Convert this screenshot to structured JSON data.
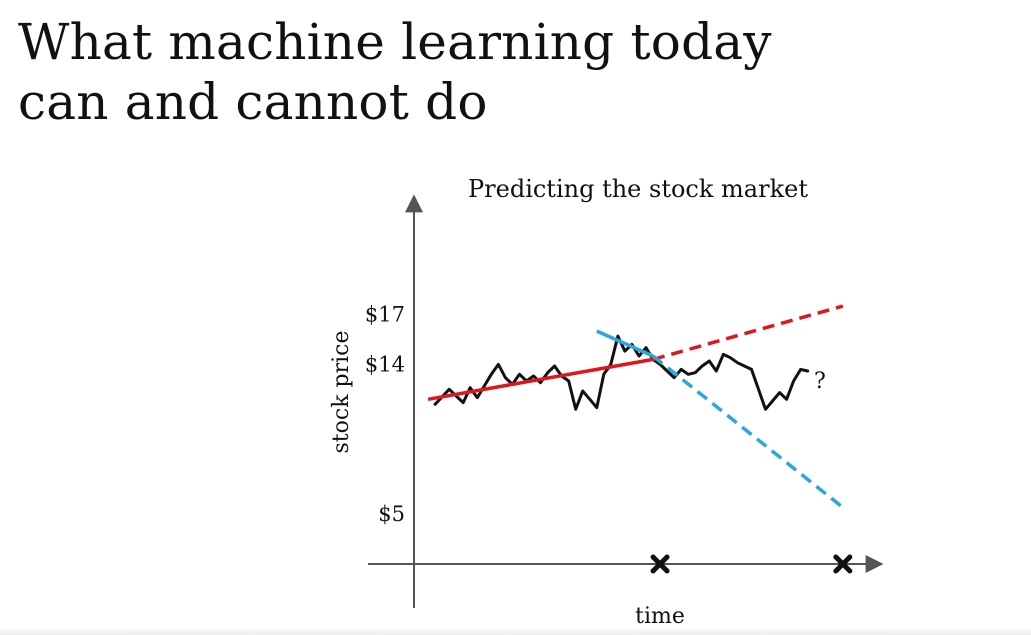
{
  "slide": {
    "title_line1": "What machine learning today",
    "title_line2": "can and cannot do"
  },
  "chart_data": {
    "type": "line",
    "title": "Predicting the stock market",
    "xlabel": "time",
    "ylabel": "stock price",
    "y_ticks": [
      "$17",
      "$14",
      "$5"
    ],
    "y_tick_values": [
      17,
      14,
      5
    ],
    "annotation": "?",
    "colors": {
      "price": "#111111",
      "fit_a": "#e0161b",
      "fit_b": "#2aa8dc",
      "axis": "#555555"
    },
    "grid": false,
    "legend": "none",
    "series": [
      {
        "values": [
          [
            2,
            11.6
          ],
          [
            4,
            12.5
          ],
          [
            5,
            12.1
          ],
          [
            6,
            11.7
          ],
          [
            7,
            12.6
          ],
          [
            8,
            12.0
          ],
          [
            9,
            12.7
          ],
          [
            10,
            13.4
          ],
          [
            11,
            14.0
          ],
          [
            12,
            13.2
          ],
          [
            13,
            12.8
          ],
          [
            14,
            13.4
          ],
          [
            15,
            13.0
          ],
          [
            16,
            13.3
          ],
          [
            17,
            12.9
          ],
          [
            18,
            13.5
          ],
          [
            19,
            13.9
          ],
          [
            20,
            13.3
          ],
          [
            21,
            13.0
          ],
          [
            22,
            11.3
          ],
          [
            23,
            12.4
          ],
          [
            24,
            11.9
          ],
          [
            25,
            11.4
          ],
          [
            26,
            13.4
          ],
          [
            27,
            14.0
          ],
          [
            28,
            15.7
          ],
          [
            29,
            14.8
          ],
          [
            30,
            15.2
          ],
          [
            31,
            14.5
          ],
          [
            32,
            15.0
          ],
          [
            33,
            14.3
          ],
          [
            34,
            14.0
          ],
          [
            35,
            13.6
          ],
          [
            36,
            13.2
          ],
          [
            37,
            13.7
          ],
          [
            38,
            13.4
          ],
          [
            39,
            13.5
          ],
          [
            40,
            13.9
          ],
          [
            41,
            14.2
          ],
          [
            42,
            13.6
          ],
          [
            43,
            14.6
          ],
          [
            44,
            14.4
          ],
          [
            45,
            14.1
          ],
          [
            46,
            13.9
          ],
          [
            47,
            13.7
          ],
          [
            48,
            12.5
          ],
          [
            49,
            11.3
          ],
          [
            50,
            11.8
          ],
          [
            51,
            12.3
          ],
          [
            52,
            11.9
          ],
          [
            53,
            13.0
          ],
          [
            54,
            13.7
          ],
          [
            55,
            13.6
          ]
        ]
      },
      {
        "values": [
          [
            1,
            11.9
          ],
          [
            33,
            14.3
          ]
        ]
      },
      {
        "values": [
          [
            33,
            14.3
          ],
          [
            60,
            17.5
          ]
        ]
      },
      {
        "values": [
          [
            25,
            16.0
          ],
          [
            33,
            14.5
          ]
        ]
      },
      {
        "values": [
          [
            33,
            14.5
          ],
          [
            60,
            5.4
          ]
        ]
      }
    ],
    "x_markers": [
      34,
      60
    ],
    "xlim": [
      -1,
      65
    ],
    "ylim": [
      2,
      24
    ]
  }
}
